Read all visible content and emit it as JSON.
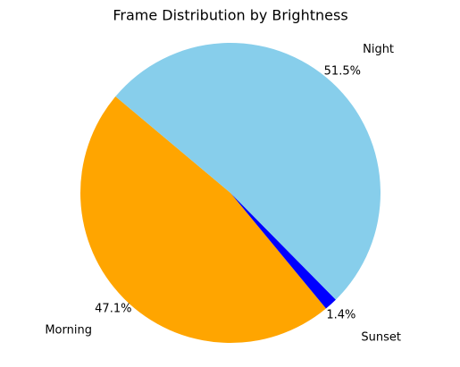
{
  "chart_data": {
    "type": "pie",
    "title": "Frame Distribution by Brightness",
    "categories": [
      "Morning",
      "Sunset",
      "Night"
    ],
    "values": [
      47.1,
      1.4,
      51.5
    ],
    "value_labels": [
      "47.1%",
      "1.4%",
      "51.5%"
    ],
    "colors": [
      "#ffa500",
      "#0000ff",
      "#87ceeb"
    ],
    "startangle": 140
  }
}
